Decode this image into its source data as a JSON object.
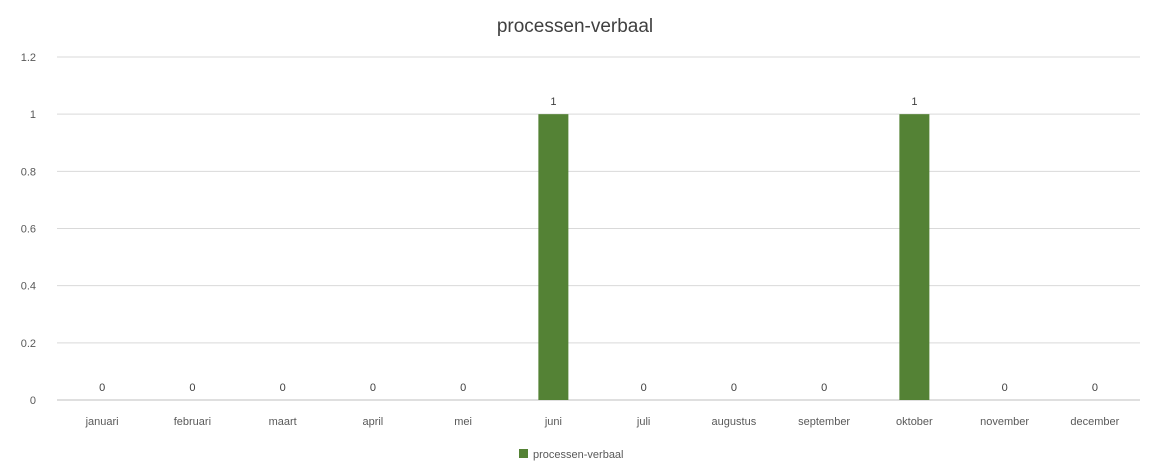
{
  "chart_data": {
    "type": "bar",
    "title": "processen-verbaal",
    "categories": [
      "januari",
      "februari",
      "maart",
      "april",
      "mei",
      "juni",
      "juli",
      "augustus",
      "september",
      "oktober",
      "november",
      "december"
    ],
    "series": [
      {
        "name": "processen-verbaal",
        "values": [
          0,
          0,
          0,
          0,
          0,
          1,
          0,
          0,
          0,
          1,
          0,
          0
        ],
        "color": "#548235"
      }
    ],
    "ylim": [
      0,
      1.2
    ],
    "yticks": [
      "0",
      "0.2",
      "0.4",
      "0.6",
      "0.8",
      "1",
      "1.2"
    ],
    "ytick_values": [
      0,
      0.2,
      0.4,
      0.6,
      0.8,
      1.0,
      1.2
    ],
    "data_labels": [
      "0",
      "0",
      "0",
      "0",
      "0",
      "1",
      "0",
      "0",
      "0",
      "1",
      "0",
      "0"
    ],
    "grid": true,
    "legend_position": "bottom"
  }
}
